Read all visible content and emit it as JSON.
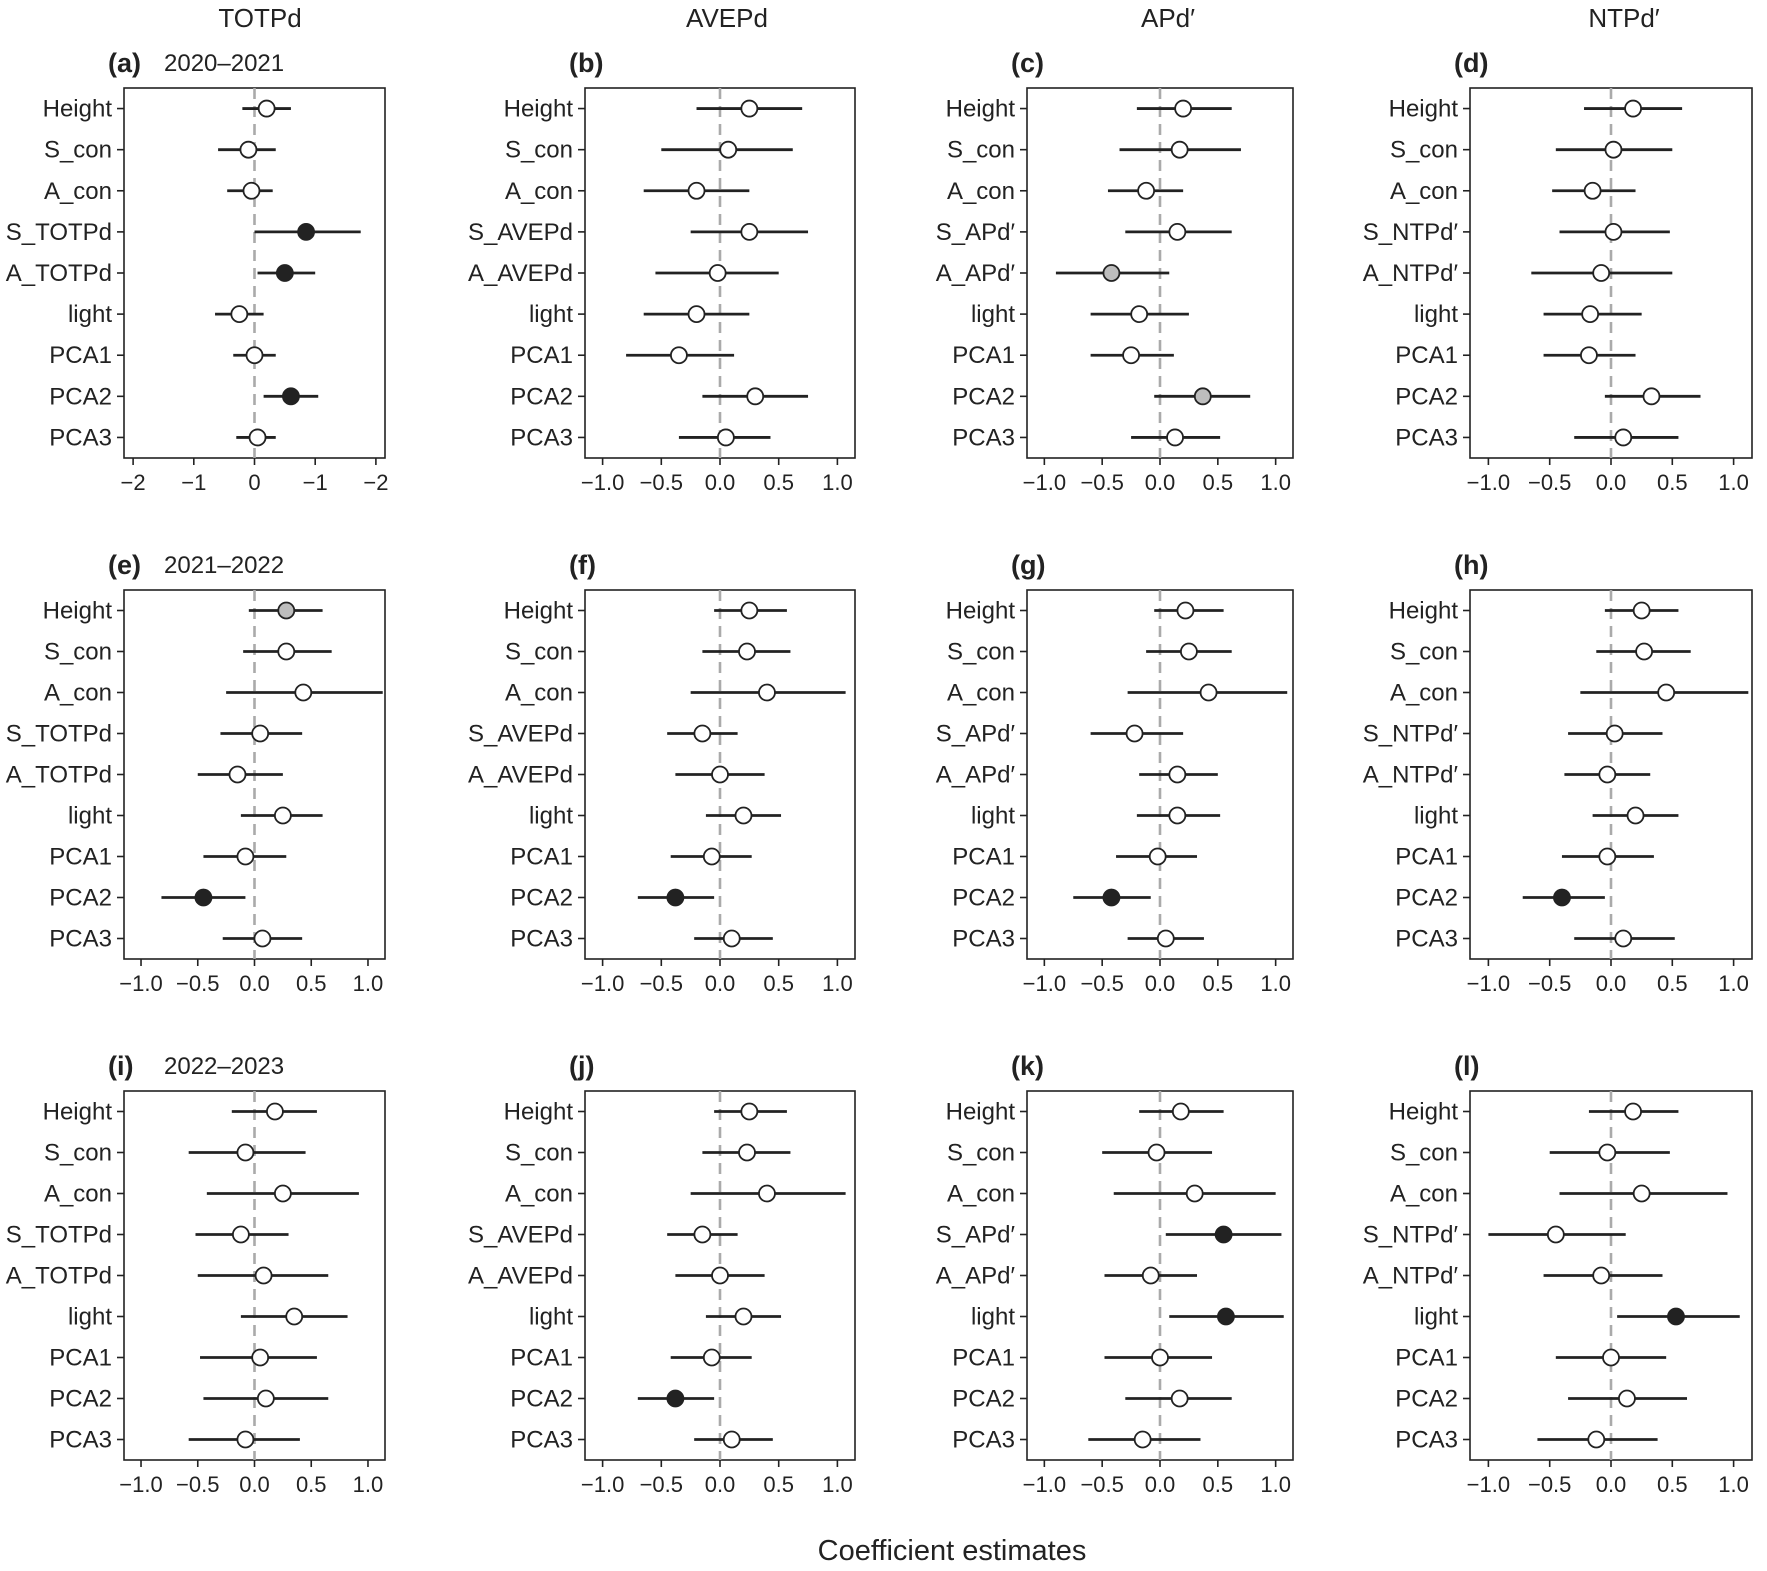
{
  "figure": {
    "columns": [
      "TOTPd",
      "AVEPd",
      "APd′",
      "NTPd′"
    ],
    "xlabel": "Coefficient estimates"
  },
  "chart_data": [
    {
      "type": "scatter",
      "panel": "(a)",
      "year": "2020–2021",
      "xlim": [
        -2.15,
        2.15
      ],
      "xticks": [
        -2,
        -1,
        0,
        1,
        2
      ],
      "xtick_labels": [
        "−2",
        "−1",
        "0",
        "−1",
        "−2"
      ],
      "categories": [
        "Height",
        "S_con",
        "A_con",
        "S_TOTPd",
        "A_TOTPd",
        "light",
        "PCA1",
        "PCA2",
        "PCA3"
      ],
      "est": [
        0.2,
        -0.1,
        -0.05,
        0.85,
        0.5,
        -0.25,
        0.0,
        0.6,
        0.05
      ],
      "lo": [
        -0.2,
        -0.6,
        -0.45,
        0.0,
        0.05,
        -0.65,
        -0.35,
        0.15,
        -0.3
      ],
      "hi": [
        0.6,
        0.35,
        0.3,
        1.75,
        1.0,
        0.15,
        0.35,
        1.05,
        0.35
      ],
      "sig": [
        "open",
        "open",
        "open",
        "filled",
        "filled",
        "open",
        "open",
        "filled",
        "open"
      ]
    },
    {
      "type": "scatter",
      "panel": "(b)",
      "year": "",
      "xlim": [
        -1.15,
        1.15
      ],
      "xticks": [
        -1,
        -0.5,
        0,
        0.5,
        1
      ],
      "xtick_labels": [
        "−1.0",
        "−0.5",
        "0.0",
        "0.5",
        "1.0"
      ],
      "categories": [
        "Height",
        "S_con",
        "A_con",
        "S_AVEPd",
        "A_AVEPd",
        "light",
        "PCA1",
        "PCA2",
        "PCA3"
      ],
      "est": [
        0.25,
        0.07,
        -0.2,
        0.25,
        -0.02,
        -0.2,
        -0.35,
        0.3,
        0.05
      ],
      "lo": [
        -0.2,
        -0.5,
        -0.65,
        -0.25,
        -0.55,
        -0.65,
        -0.8,
        -0.15,
        -0.35
      ],
      "hi": [
        0.7,
        0.62,
        0.25,
        0.75,
        0.5,
        0.25,
        0.12,
        0.75,
        0.43
      ],
      "sig": [
        "open",
        "open",
        "open",
        "open",
        "open",
        "open",
        "open",
        "open",
        "open"
      ]
    },
    {
      "type": "scatter",
      "panel": "(c)",
      "year": "",
      "xlim": [
        -1.15,
        1.15
      ],
      "xticks": [
        -1,
        -0.5,
        0,
        0.5,
        1
      ],
      "xtick_labels": [
        "−1.0",
        "−0.5",
        "0.0",
        "0.5",
        "1.0"
      ],
      "categories": [
        "Height",
        "S_con",
        "A_con",
        "S_APd′",
        "A_APd′",
        "light",
        "PCA1",
        "PCA2",
        "PCA3"
      ],
      "est": [
        0.2,
        0.17,
        -0.12,
        0.15,
        -0.42,
        -0.18,
        -0.25,
        0.37,
        0.13
      ],
      "lo": [
        -0.2,
        -0.35,
        -0.45,
        -0.3,
        -0.9,
        -0.6,
        -0.6,
        -0.05,
        -0.25
      ],
      "hi": [
        0.62,
        0.7,
        0.2,
        0.62,
        0.08,
        0.25,
        0.12,
        0.78,
        0.52
      ],
      "sig": [
        "open",
        "open",
        "open",
        "open",
        "gray",
        "open",
        "open",
        "gray",
        "open"
      ]
    },
    {
      "type": "scatter",
      "panel": "(d)",
      "year": "",
      "xlim": [
        -1.15,
        1.15
      ],
      "xticks": [
        -1,
        -0.5,
        0,
        0.5,
        1
      ],
      "xtick_labels": [
        "−1.0",
        "−0.5",
        "0.0",
        "0.5",
        "1.0"
      ],
      "categories": [
        "Height",
        "S_con",
        "A_con",
        "S_NTPd′",
        "A_NTPd′",
        "light",
        "PCA1",
        "PCA2",
        "PCA3"
      ],
      "est": [
        0.18,
        0.02,
        -0.15,
        0.02,
        -0.08,
        -0.17,
        -0.18,
        0.33,
        0.1
      ],
      "lo": [
        -0.22,
        -0.45,
        -0.48,
        -0.42,
        -0.65,
        -0.55,
        -0.55,
        -0.05,
        -0.3
      ],
      "hi": [
        0.58,
        0.5,
        0.2,
        0.48,
        0.5,
        0.25,
        0.2,
        0.73,
        0.55
      ],
      "sig": [
        "open",
        "open",
        "open",
        "open",
        "open",
        "open",
        "open",
        "open",
        "open"
      ]
    },
    {
      "type": "scatter",
      "panel": "(e)",
      "year": "2021–2022",
      "xlim": [
        -1.15,
        1.15
      ],
      "xticks": [
        -1,
        -0.5,
        0,
        0.5,
        1
      ],
      "xtick_labels": [
        "−1.0",
        "−0.5",
        "0.0",
        "0.5",
        "1.0"
      ],
      "categories": [
        "Height",
        "S_con",
        "A_con",
        "S_TOTPd",
        "A_TOTPd",
        "light",
        "PCA1",
        "PCA2",
        "PCA3"
      ],
      "est": [
        0.28,
        0.28,
        0.43,
        0.05,
        -0.15,
        0.25,
        -0.08,
        -0.45,
        0.07
      ],
      "lo": [
        -0.05,
        -0.1,
        -0.25,
        -0.3,
        -0.5,
        -0.12,
        -0.45,
        -0.82,
        -0.28
      ],
      "hi": [
        0.6,
        0.68,
        1.13,
        0.42,
        0.25,
        0.6,
        0.28,
        -0.08,
        0.42
      ],
      "sig": [
        "gray",
        "open",
        "open",
        "open",
        "open",
        "open",
        "open",
        "filled",
        "open"
      ]
    },
    {
      "type": "scatter",
      "panel": "(f)",
      "year": "",
      "xlim": [
        -1.15,
        1.15
      ],
      "xticks": [
        -1,
        -0.5,
        0,
        0.5,
        1
      ],
      "xtick_labels": [
        "−1.0",
        "−0.5",
        "0.0",
        "0.5",
        "1.0"
      ],
      "categories": [
        "Height",
        "S_con",
        "A_con",
        "S_AVEPd",
        "A_AVEPd",
        "light",
        "PCA1",
        "PCA2",
        "PCA3"
      ],
      "est": [
        0.25,
        0.23,
        0.4,
        -0.15,
        0.0,
        0.2,
        -0.07,
        -0.38,
        0.1
      ],
      "lo": [
        -0.05,
        -0.15,
        -0.25,
        -0.45,
        -0.38,
        -0.12,
        -0.42,
        -0.7,
        -0.22
      ],
      "hi": [
        0.57,
        0.6,
        1.07,
        0.15,
        0.38,
        0.52,
        0.27,
        -0.05,
        0.45
      ],
      "sig": [
        "open",
        "open",
        "open",
        "open",
        "open",
        "open",
        "open",
        "filled",
        "open"
      ]
    },
    {
      "type": "scatter",
      "panel": "(g)",
      "year": "",
      "xlim": [
        -1.15,
        1.15
      ],
      "xticks": [
        -1,
        -0.5,
        0,
        0.5,
        1
      ],
      "xtick_labels": [
        "−1.0",
        "−0.5",
        "0.0",
        "0.5",
        "1.0"
      ],
      "categories": [
        "Height",
        "S_con",
        "A_con",
        "S_APd′",
        "A_APd′",
        "light",
        "PCA1",
        "PCA2",
        "PCA3"
      ],
      "est": [
        0.22,
        0.25,
        0.42,
        -0.22,
        0.15,
        0.15,
        -0.02,
        -0.42,
        0.05
      ],
      "lo": [
        -0.05,
        -0.12,
        -0.28,
        -0.6,
        -0.18,
        -0.2,
        -0.38,
        -0.75,
        -0.28
      ],
      "hi": [
        0.55,
        0.62,
        1.1,
        0.2,
        0.5,
        0.52,
        0.32,
        -0.08,
        0.38
      ],
      "sig": [
        "open",
        "open",
        "open",
        "open",
        "open",
        "open",
        "open",
        "filled",
        "open"
      ]
    },
    {
      "type": "scatter",
      "panel": "(h)",
      "year": "",
      "xlim": [
        -1.15,
        1.15
      ],
      "xticks": [
        -1,
        -0.5,
        0,
        0.5,
        1
      ],
      "xtick_labels": [
        "−1.0",
        "−0.5",
        "0.0",
        "0.5",
        "1.0"
      ],
      "categories": [
        "Height",
        "S_con",
        "A_con",
        "S_NTPd′",
        "A_NTPd′",
        "light",
        "PCA1",
        "PCA2",
        "PCA3"
      ],
      "est": [
        0.25,
        0.27,
        0.45,
        0.03,
        -0.03,
        0.2,
        -0.03,
        -0.4,
        0.1
      ],
      "lo": [
        -0.05,
        -0.12,
        -0.25,
        -0.35,
        -0.38,
        -0.15,
        -0.4,
        -0.72,
        -0.3
      ],
      "hi": [
        0.55,
        0.65,
        1.12,
        0.42,
        0.32,
        0.55,
        0.35,
        -0.05,
        0.52
      ],
      "sig": [
        "open",
        "open",
        "open",
        "open",
        "open",
        "open",
        "open",
        "filled",
        "open"
      ]
    },
    {
      "type": "scatter",
      "panel": "(i)",
      "year": "2022–2023",
      "xlim": [
        -1.15,
        1.15
      ],
      "xticks": [
        -1,
        -0.5,
        0,
        0.5,
        1
      ],
      "xtick_labels": [
        "−1.0",
        "−0.5",
        "0.0",
        "0.5",
        "1.0"
      ],
      "categories": [
        "Height",
        "S_con",
        "A_con",
        "S_TOTPd",
        "A_TOTPd",
        "light",
        "PCA1",
        "PCA2",
        "PCA3"
      ],
      "est": [
        0.18,
        -0.08,
        0.25,
        -0.12,
        0.08,
        0.35,
        0.05,
        0.1,
        -0.08
      ],
      "lo": [
        -0.2,
        -0.58,
        -0.42,
        -0.52,
        -0.5,
        -0.12,
        -0.48,
        -0.45,
        -0.58
      ],
      "hi": [
        0.55,
        0.45,
        0.92,
        0.3,
        0.65,
        0.82,
        0.55,
        0.65,
        0.4
      ],
      "sig": [
        "open",
        "open",
        "open",
        "open",
        "open",
        "open",
        "open",
        "open",
        "open"
      ]
    },
    {
      "type": "scatter",
      "panel": "(j)",
      "year": "",
      "xlim": [
        -1.15,
        1.15
      ],
      "xticks": [
        -1,
        -0.5,
        0,
        0.5,
        1
      ],
      "xtick_labels": [
        "−1.0",
        "−0.5",
        "0.0",
        "0.5",
        "1.0"
      ],
      "categories": [
        "Height",
        "S_con",
        "A_con",
        "S_AVEPd",
        "A_AVEPd",
        "light",
        "PCA1",
        "PCA2",
        "PCA3"
      ],
      "est": [
        0.25,
        0.23,
        0.4,
        -0.15,
        0.0,
        0.2,
        -0.07,
        -0.38,
        0.1
      ],
      "lo": [
        -0.05,
        -0.15,
        -0.25,
        -0.45,
        -0.38,
        -0.12,
        -0.42,
        -0.7,
        -0.22
      ],
      "hi": [
        0.57,
        0.6,
        1.07,
        0.15,
        0.38,
        0.52,
        0.27,
        -0.05,
        0.45
      ],
      "sig": [
        "open",
        "open",
        "open",
        "open",
        "open",
        "open",
        "open",
        "filled",
        "open"
      ]
    },
    {
      "type": "scatter",
      "panel": "(k)",
      "year": "",
      "xlim": [
        -1.15,
        1.15
      ],
      "xticks": [
        -1,
        -0.5,
        0,
        0.5,
        1
      ],
      "xtick_labels": [
        "−1.0",
        "−0.5",
        "0.0",
        "0.5",
        "1.0"
      ],
      "categories": [
        "Height",
        "S_con",
        "A_con",
        "S_APd′",
        "A_APd′",
        "light",
        "PCA1",
        "PCA2",
        "PCA3"
      ],
      "est": [
        0.18,
        -0.03,
        0.3,
        0.55,
        -0.08,
        0.57,
        0.0,
        0.17,
        -0.15
      ],
      "lo": [
        -0.18,
        -0.5,
        -0.4,
        0.05,
        -0.48,
        0.08,
        -0.48,
        -0.3,
        -0.62
      ],
      "hi": [
        0.55,
        0.45,
        1.0,
        1.05,
        0.32,
        1.07,
        0.45,
        0.62,
        0.35
      ],
      "sig": [
        "open",
        "open",
        "open",
        "filled",
        "open",
        "filled",
        "open",
        "open",
        "open"
      ]
    },
    {
      "type": "scatter",
      "panel": "(l)",
      "year": "",
      "xlim": [
        -1.15,
        1.15
      ],
      "xticks": [
        -1,
        -0.5,
        0,
        0.5,
        1
      ],
      "xtick_labels": [
        "−1.0",
        "−0.5",
        "0.0",
        "0.5",
        "1.0"
      ],
      "categories": [
        "Height",
        "S_con",
        "A_con",
        "S_NTPd′",
        "A_NTPd′",
        "light",
        "PCA1",
        "PCA2",
        "PCA3"
      ],
      "est": [
        0.18,
        -0.03,
        0.25,
        -0.45,
        -0.08,
        0.53,
        0.0,
        0.13,
        -0.12
      ],
      "lo": [
        -0.18,
        -0.5,
        -0.42,
        -1.0,
        -0.55,
        0.05,
        -0.45,
        -0.35,
        -0.6
      ],
      "hi": [
        0.55,
        0.48,
        0.95,
        0.12,
        0.42,
        1.05,
        0.45,
        0.62,
        0.38
      ],
      "sig": [
        "open",
        "open",
        "open",
        "open",
        "open",
        "filled",
        "open",
        "open",
        "open"
      ]
    }
  ]
}
